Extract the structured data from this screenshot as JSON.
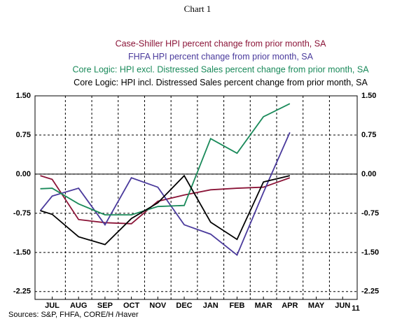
{
  "chart_data": {
    "type": "line",
    "title": "Chart 1",
    "legend_title": "Case-Shiller HPI percent change from prior month, SA",
    "source": "Sources:  S&P, FHFA, CORE/H /Haver",
    "annotation": "11",
    "x": [
      0.55,
      1,
      2,
      3,
      4,
      5,
      6,
      7,
      8,
      9,
      10
    ],
    "xlim": [
      0.35,
      12.55
    ],
    "xticks": [
      {
        "value": 1,
        "label": "JUL"
      },
      {
        "value": 2,
        "label": "AUG"
      },
      {
        "value": 3,
        "label": "SEP"
      },
      {
        "value": 4,
        "label": "OCT"
      },
      {
        "value": 5,
        "label": "NOV"
      },
      {
        "value": 6,
        "label": "DEC"
      },
      {
        "value": 7,
        "label": "JAN"
      },
      {
        "value": 8,
        "label": "FEB"
      },
      {
        "value": 9,
        "label": "MAR"
      },
      {
        "value": 10,
        "label": "APR"
      },
      {
        "value": 11,
        "label": "MAY"
      },
      {
        "value": 12,
        "label": "JUN"
      }
    ],
    "xgrid": [
      1.5,
      2.5,
      3.5,
      4.5,
      5.5,
      6.5,
      7.5,
      8.5,
      9.5,
      10.5,
      11.5
    ],
    "ylim": [
      -2.4,
      1.5
    ],
    "yticks": [
      {
        "value": 1.5,
        "label": "1.50"
      },
      {
        "value": 0.75,
        "label": "0.75"
      },
      {
        "value": 0,
        "label": "0.00"
      },
      {
        "value": -0.75,
        "label": "-0.75"
      },
      {
        "value": -1.5,
        "label": "-1.50"
      },
      {
        "value": -2.25,
        "label": "-2.25"
      }
    ],
    "grid": true,
    "series": [
      {
        "name": "Case-Shiller HPI percent change from prior month, SA",
        "color": "#8b1538",
        "values": [
          -0.03,
          -0.1,
          -0.87,
          -0.93,
          -0.95,
          -0.52,
          -0.4,
          -0.3,
          -0.27,
          -0.25,
          -0.07
        ]
      },
      {
        "name": "FHFA HPI percent change from prior month, SA",
        "color": "#4a3a9c",
        "values": [
          -0.7,
          -0.42,
          -0.27,
          -0.97,
          -0.07,
          -0.25,
          -0.97,
          -1.15,
          -1.55,
          -0.35,
          0.8
        ]
      },
      {
        "name": "Core Logic: HPI excl. Distressed Sales percent change from prior month, SA",
        "color": "#1a8a5a",
        "values": [
          -0.28,
          -0.27,
          -0.57,
          -0.78,
          -0.78,
          -0.62,
          -0.6,
          0.68,
          0.4,
          1.1,
          1.35
        ]
      },
      {
        "name": "Core Logic: HPI incl. Distressed Sales percent change from prior month, SA",
        "color": "#000000",
        "values": [
          -0.7,
          -0.77,
          -1.2,
          -1.35,
          -0.85,
          -0.55,
          -0.03,
          -0.92,
          -1.25,
          -0.15,
          -0.03
        ]
      }
    ]
  }
}
